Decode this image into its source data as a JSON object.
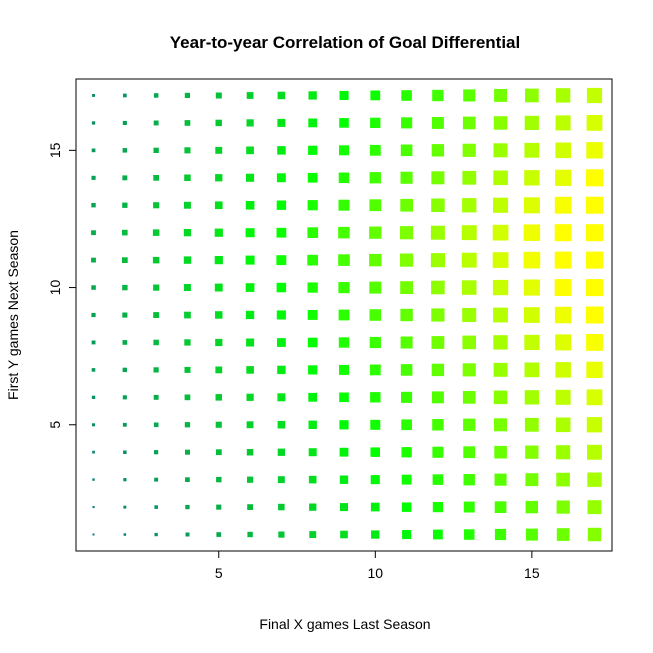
{
  "chart_data": {
    "type": "heatmap",
    "title": "Year-to-year Correlation of Goal Differential",
    "xlabel": "Final X games Last Season",
    "ylabel": "First Y games Next Season",
    "x": [
      1,
      2,
      3,
      4,
      5,
      6,
      7,
      8,
      9,
      10,
      11,
      12,
      13,
      14,
      15,
      16,
      17
    ],
    "y": [
      1,
      2,
      3,
      4,
      5,
      6,
      7,
      8,
      9,
      10,
      11,
      12,
      13,
      14,
      15,
      16,
      17
    ],
    "xlim": [
      0.44,
      17.56
    ],
    "ylim": [
      0.4,
      17.6
    ],
    "x_ticks": [
      5,
      10,
      15
    ],
    "y_ticks": [
      5,
      10,
      15
    ],
    "encoding": "marker size and color increase with correlation strength",
    "color_low": "#0b7a78",
    "color_mid": "#00ff00",
    "color_high": "#ffff00",
    "grid": false,
    "legend": "none"
  }
}
